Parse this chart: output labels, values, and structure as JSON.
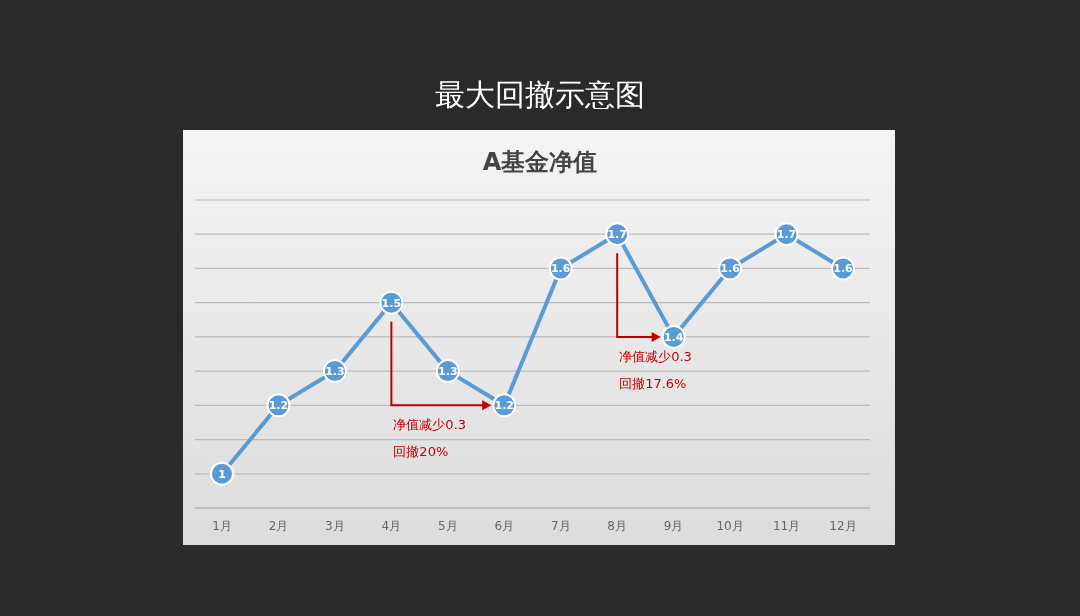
{
  "chart_data": {
    "type": "line",
    "title": "最大回撤示意图",
    "subtitle": "A基金净值",
    "categories": [
      "1月",
      "2月",
      "3月",
      "4月",
      "5月",
      "6月",
      "7月",
      "8月",
      "9月",
      "10月",
      "11月",
      "12月"
    ],
    "series": [
      {
        "color": "#5b9bd5",
        "values": [
          1,
          1.2,
          1.3,
          1.5,
          1.3,
          1.2,
          1.6,
          1.7,
          1.4,
          1.6,
          1.7,
          1.6
        ]
      }
    ],
    "ylim": [
      0.9,
      1.8
    ],
    "yticks": [
      {
        "value": 0.9,
        "label": null
      },
      {
        "value": 1.0,
        "label": null
      },
      {
        "value": 1.1,
        "label": null
      },
      {
        "value": 1.2,
        "label": null
      },
      {
        "value": 1.3,
        "label": null
      },
      {
        "value": 1.4,
        "label": null
      },
      {
        "value": 1.5,
        "label": null
      },
      {
        "value": 1.6,
        "label": null
      },
      {
        "value": 1.7,
        "label": null
      },
      {
        "value": 1.8,
        "label": null
      }
    ],
    "grid": "y",
    "tick_labels": "x",
    "marker": "circle",
    "line_style": "solid",
    "data_labels": true,
    "annotations": [
      "净值减少0.3",
      "回撤20%",
      "净值减少0.3",
      "回撤17.6%"
    ]
  }
}
